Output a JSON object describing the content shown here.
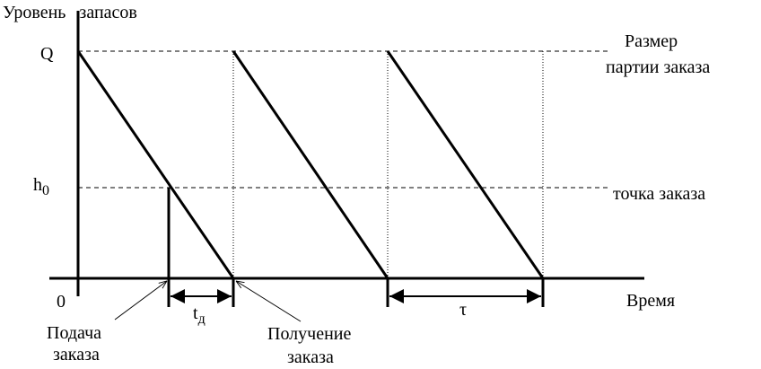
{
  "axis": {
    "y_title": "Уровень   запасов",
    "x_title": "Время",
    "origin": "0"
  },
  "levels": {
    "q": "Q",
    "h_main": "h",
    "h_sub": "0"
  },
  "right_labels": {
    "batch_line1": "Размер",
    "batch_line2": "партии заказа",
    "reorder": "точка заказа"
  },
  "intervals": {
    "lead_main": "t",
    "lead_sub": "д",
    "cycle": "τ"
  },
  "events": {
    "order_line1": "Подача",
    "order_line2": "заказа",
    "receipt_line1": "Получение",
    "receipt_line2": "заказа"
  }
}
